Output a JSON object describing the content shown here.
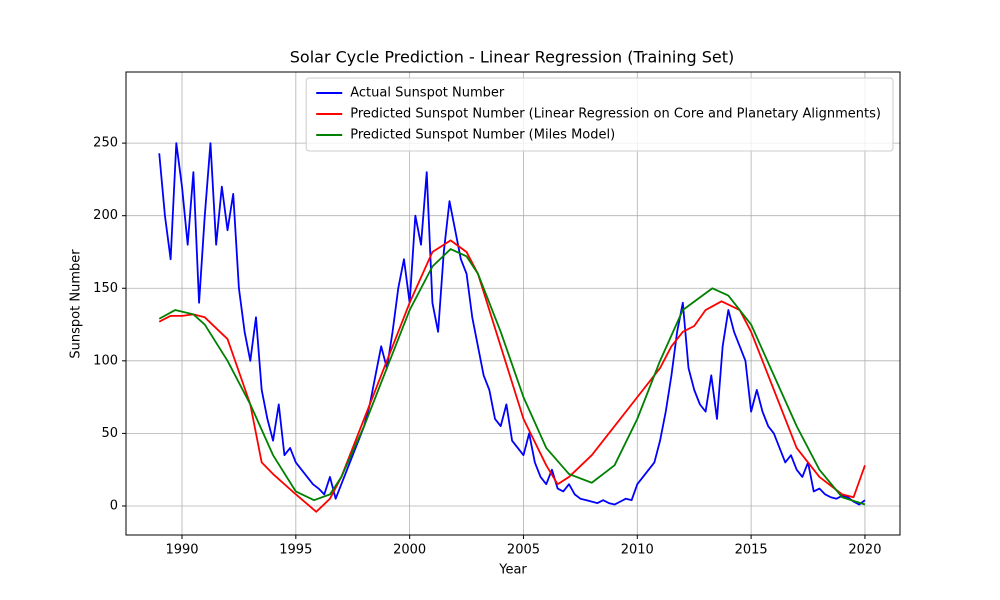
{
  "chart_data": {
    "type": "line",
    "title": "Solar Cycle Prediction - Linear Regression (Training Set)",
    "x_label": "Year",
    "y_label": "Sunspot Number",
    "xlim": [
      1987.54,
      2021.54
    ],
    "ylim": [
      -20,
      299
    ],
    "xticks": [
      1990,
      1995,
      2000,
      2005,
      2010,
      2015,
      2020
    ],
    "yticks": [
      0,
      50,
      100,
      150,
      200,
      250
    ],
    "grid": true,
    "legend": "upper right",
    "series": [
      {
        "name": "Actual Sunspot Number",
        "color": "#0000ff",
        "x": [
          1989.0,
          1989.25,
          1989.5,
          1989.75,
          1990.0,
          1990.25,
          1990.5,
          1990.75,
          1991.0,
          1991.25,
          1991.5,
          1991.75,
          1992.0,
          1992.25,
          1992.5,
          1992.75,
          1993.0,
          1993.25,
          1993.5,
          1993.75,
          1994.0,
          1994.25,
          1994.5,
          1994.75,
          1995.0,
          1995.25,
          1995.5,
          1995.75,
          1996.0,
          1996.25,
          1996.5,
          1996.75,
          1997.0,
          1997.25,
          1997.5,
          1997.75,
          1998.0,
          1998.25,
          1998.5,
          1998.75,
          1999.0,
          1999.25,
          1999.5,
          1999.75,
          2000.0,
          2000.25,
          2000.5,
          2000.75,
          2001.0,
          2001.25,
          2001.5,
          2001.75,
          2002.0,
          2002.25,
          2002.5,
          2002.75,
          2003.0,
          2003.25,
          2003.5,
          2003.75,
          2004.0,
          2004.25,
          2004.5,
          2004.75,
          2005.0,
          2005.25,
          2005.5,
          2005.75,
          2006.0,
          2006.25,
          2006.5,
          2006.75,
          2007.0,
          2007.25,
          2007.5,
          2007.75,
          2008.0,
          2008.25,
          2008.5,
          2008.75,
          2009.0,
          2009.25,
          2009.5,
          2009.75,
          2010.0,
          2010.25,
          2010.5,
          2010.75,
          2011.0,
          2011.25,
          2011.5,
          2011.75,
          2012.0,
          2012.25,
          2012.5,
          2012.75,
          2013.0,
          2013.25,
          2013.5,
          2013.75,
          2014.0,
          2014.25,
          2014.5,
          2014.75,
          2015.0,
          2015.25,
          2015.5,
          2015.75,
          2016.0,
          2016.25,
          2016.5,
          2016.75,
          2017.0,
          2017.25,
          2017.5,
          2017.75,
          2018.0,
          2018.25,
          2018.5,
          2018.75,
          2019.0,
          2019.25,
          2019.5,
          2019.75,
          2020.0
        ],
        "values": [
          243,
          200,
          170,
          250,
          220,
          180,
          230,
          140,
          200,
          250,
          180,
          220,
          190,
          215,
          150,
          120,
          100,
          130,
          80,
          60,
          45,
          70,
          35,
          40,
          30,
          25,
          20,
          15,
          12,
          8,
          20,
          5,
          15,
          25,
          35,
          45,
          55,
          70,
          90,
          110,
          95,
          120,
          150,
          170,
          140,
          200,
          180,
          230,
          140,
          120,
          175,
          210,
          190,
          170,
          160,
          130,
          110,
          90,
          80,
          60,
          55,
          70,
          45,
          40,
          35,
          50,
          30,
          20,
          15,
          25,
          12,
          10,
          15,
          8,
          5,
          4,
          3,
          2,
          4,
          2,
          1,
          3,
          5,
          4,
          15,
          20,
          25,
          30,
          45,
          65,
          90,
          120,
          140,
          95,
          80,
          70,
          65,
          90,
          60,
          110,
          135,
          120,
          110,
          100,
          65,
          80,
          65,
          55,
          50,
          40,
          30,
          35,
          25,
          20,
          30,
          10,
          12,
          8,
          6,
          5,
          7,
          6,
          3,
          1,
          4
        ]
      },
      {
        "name": "Predicted Sunspot Number (Linear Regression on Core and Planetary Alignments)",
        "color": "#ff0000",
        "x": [
          1989,
          1989.5,
          1990,
          1990.5,
          1991,
          1992,
          1993,
          1993.5,
          1994,
          1995,
          1995.9,
          1996.5,
          1997,
          1998,
          1999,
          2000,
          2001,
          2001.8,
          2002.5,
          2003,
          2004,
          2005,
          2006,
          2006.5,
          2007,
          2008,
          2009,
          2010,
          2011,
          2011.5,
          2012,
          2012.5,
          2013,
          2013.7,
          2014.5,
          2015,
          2016,
          2017,
          2018,
          2019,
          2019.5,
          2020
        ],
        "values": [
          127,
          131,
          131,
          132,
          130,
          115,
          70,
          30,
          22,
          8,
          -4,
          5,
          20,
          60,
          100,
          140,
          175,
          183,
          175,
          160,
          110,
          60,
          28,
          15,
          20,
          35,
          55,
          75,
          95,
          110,
          120,
          124,
          135,
          141,
          135,
          120,
          80,
          40,
          20,
          8,
          6,
          28
        ]
      },
      {
        "name": "Predicted Sunspot Number (Miles Model)",
        "color": "#008000",
        "x": [
          1989,
          1989.7,
          1990.5,
          1991,
          1992,
          1993,
          1994,
          1995,
          1995.8,
          1996.5,
          1997,
          1998,
          1999,
          2000,
          2001,
          2001.8,
          2002.5,
          2003,
          2004,
          2005,
          2006,
          2007,
          2008,
          2009,
          2010,
          2011,
          2012,
          2013.3,
          2014,
          2015,
          2016,
          2017,
          2018,
          2019,
          2020
        ],
        "values": [
          129,
          135,
          132,
          125,
          100,
          70,
          35,
          10,
          4,
          8,
          20,
          55,
          95,
          135,
          165,
          177,
          172,
          160,
          120,
          75,
          40,
          22,
          16,
          28,
          60,
          100,
          135,
          150,
          145,
          125,
          90,
          55,
          25,
          6,
          1
        ]
      }
    ]
  }
}
